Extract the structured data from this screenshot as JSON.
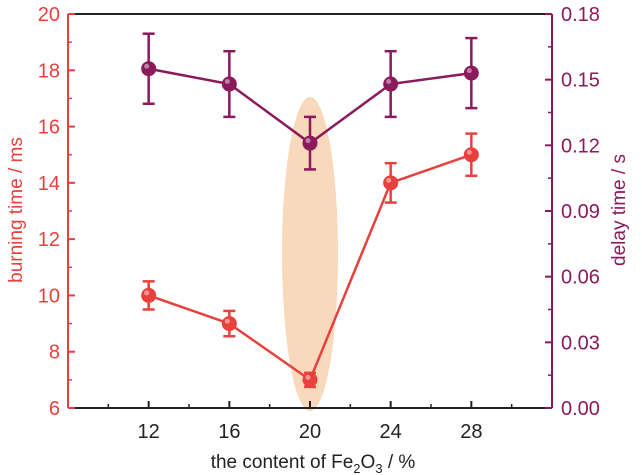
{
  "chart_data": {
    "type": "line",
    "x": [
      12,
      16,
      20,
      24,
      28
    ],
    "xlabel_prefix": "the content of Fe",
    "xlabel_sub2": "2",
    "xlabel_mid": "O",
    "xlabel_sub3": "3",
    "xlabel_suffix": " / %",
    "xlim": [
      8,
      32
    ],
    "x_ticks": [
      "12",
      "16",
      "20",
      "24",
      "28"
    ],
    "ylabel_left": "burning time / ms",
    "ylim_left": [
      6,
      20
    ],
    "y_ticks_left": [
      "6",
      "8",
      "10",
      "12",
      "14",
      "16",
      "18",
      "20"
    ],
    "ylabel_right": "delay time / s",
    "ylim_right": [
      0,
      0.18
    ],
    "y_ticks_right": [
      "0.00",
      "0.03",
      "0.06",
      "0.09",
      "0.12",
      "0.15",
      "0.18"
    ],
    "series": [
      {
        "name": "burning time",
        "axis": "left",
        "color": "#e8403d",
        "values": [
          10,
          9,
          7,
          14,
          15
        ],
        "errors": [
          0.5,
          0.45,
          0.25,
          0.7,
          0.75
        ]
      },
      {
        "name": "delay time",
        "axis": "right",
        "color": "#8b1a5c",
        "values": [
          0.155,
          0.148,
          0.121,
          0.148,
          0.153
        ],
        "errors": [
          0.016,
          0.015,
          0.012,
          0.015,
          0.016
        ]
      }
    ],
    "highlight": {
      "x": 20,
      "color": "#f7d2b0"
    }
  }
}
